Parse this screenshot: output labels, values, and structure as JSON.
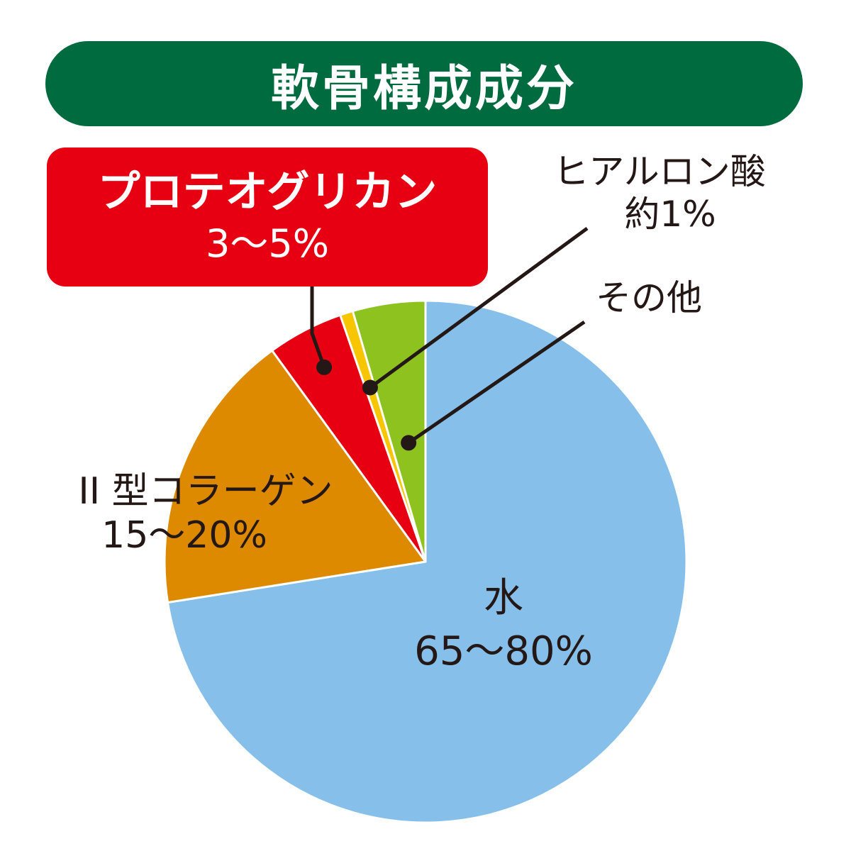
{
  "colors": {
    "title_bg": "#006b3f",
    "callout_bg": "#e60012",
    "leader": "#231815",
    "slice_border": "#ffffff"
  },
  "chart_data": {
    "type": "pie",
    "title": "軟骨構成成分",
    "slices": [
      {
        "name": "水",
        "range": "65〜80%",
        "percent": 72.5,
        "color": "#86bfe9"
      },
      {
        "name": "II 型コラーゲン",
        "range": "15〜20%",
        "percent": 17.5,
        "color": "#dd8a00"
      },
      {
        "name": "プロテオグリカン",
        "range": "3〜5%",
        "percent": 4.7,
        "color": "#e60012"
      },
      {
        "name": "ヒアルロン酸",
        "range": "約1%",
        "percent": 0.8,
        "color": "#f7c600"
      },
      {
        "name": "その他",
        "range": "",
        "percent": 4.5,
        "color": "#8dc21f"
      }
    ],
    "start": "12 o'clock",
    "direction": "clockwise",
    "legend": "none"
  }
}
